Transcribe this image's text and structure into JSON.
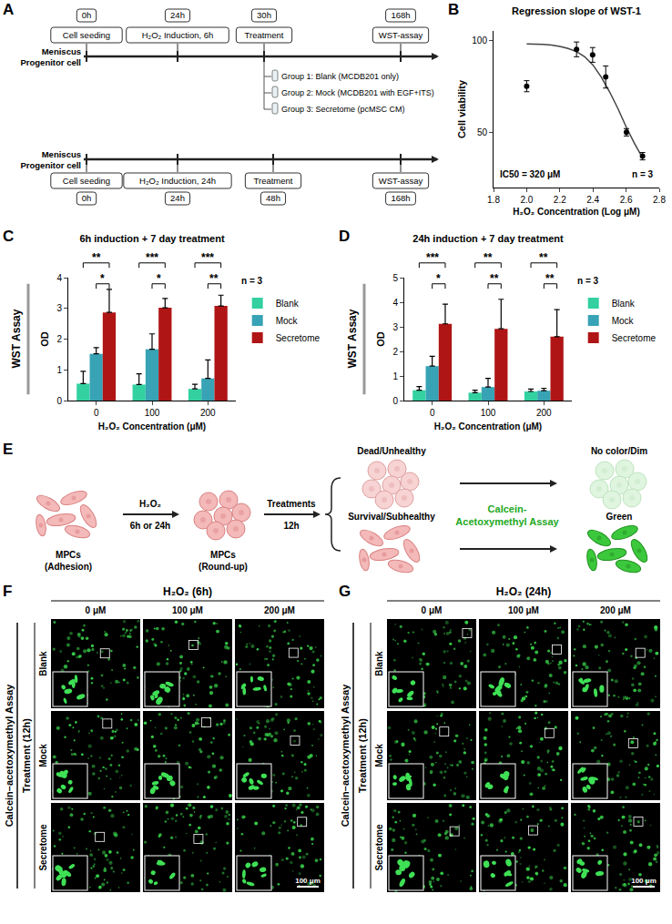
{
  "panel_letters": [
    "A",
    "B",
    "C",
    "D",
    "E",
    "F",
    "G"
  ],
  "timelines": {
    "cell_label": [
      "Meniscus",
      "Progenitor cell"
    ],
    "rows": [
      {
        "times": [
          "0h",
          "24h",
          "30h",
          "168h"
        ],
        "steps": [
          "Cell seeding",
          "H₂O₂ Induction, 6h",
          "Treatment",
          "WST-assay"
        ],
        "groups": [
          "Group 1: Blank (MCDB201 only)",
          "Group 2: Mock (MCDB201 with EGF+ITS)",
          "Group 3: Secretome (pcMSC CM)"
        ]
      },
      {
        "times": [
          "0h",
          "24h",
          "48h",
          "168h"
        ],
        "steps": [
          "Cell seeding",
          "H₂O₂ Induction, 24h",
          "Treatment",
          "WST-assay"
        ]
      }
    ]
  },
  "chart_data": [
    {
      "type": "scatter",
      "title": "Regression slope of WST-1",
      "x_label": "H₂O₂ Concentration (Log μM)",
      "y_label": "Cell viability",
      "annotations": [
        "IC50 = 320 μM",
        "n = 3"
      ],
      "xlim": [
        1.8,
        2.8
      ],
      "xticks": [
        1.8,
        {
          "value": 2,
          "label": "2.0"
        },
        2.2,
        2.4,
        2.6,
        2.8
      ],
      "ylim": [
        20,
        105
      ],
      "yticks": [
        50,
        100
      ],
      "grid": false,
      "series": [
        {
          "type": "line",
          "line_style": "solid",
          "color": "#444444",
          "x": [
            2.0,
            2.05,
            2.1,
            2.15,
            2.2,
            2.25,
            2.3,
            2.35,
            2.4,
            2.45,
            2.5,
            2.55,
            2.6,
            2.65,
            2.7
          ],
          "values": [
            98,
            97.9,
            97.7,
            97.3,
            96.6,
            95.5,
            93.8,
            91,
            86.5,
            80,
            72,
            63,
            53,
            44,
            36
          ]
        },
        {
          "type": "scatter",
          "marker": "circle",
          "color": "#000000",
          "x": [
            2.0,
            2.301,
            2.398,
            2.477,
            2.602,
            2.699
          ],
          "values": [
            75,
            95,
            92,
            80,
            50,
            37
          ],
          "errors": [
            3,
            4,
            4,
            6,
            2,
            2
          ]
        }
      ]
    },
    {
      "type": "bar",
      "title": "6h induction + 7 day treatment",
      "side_label": "WST Assay",
      "x_label": "H₂O₂ Concentration (μM)",
      "y_label": "OD",
      "annotations": [
        "n = 3"
      ],
      "categories": [
        "0",
        "100",
        "200"
      ],
      "ylim": [
        0,
        4
      ],
      "yticks": [
        0,
        1,
        2,
        3,
        4
      ],
      "grid": false,
      "legend": "right",
      "series": [
        {
          "name": "Blank",
          "color": "#33d1a0",
          "values": [
            0.55,
            0.52,
            0.38
          ],
          "errors": [
            0.4,
            0.35,
            0.15
          ]
        },
        {
          "name": "Mock",
          "color": "#38a3b5",
          "values": [
            1.52,
            1.67,
            0.72
          ],
          "errors": [
            0.2,
            0.5,
            0.6
          ]
        },
        {
          "name": "Secretome",
          "color": "#b01515",
          "values": [
            2.87,
            3.02,
            3.08
          ],
          "errors": [
            0.75,
            0.3,
            0.35
          ]
        }
      ],
      "significance": [
        {
          "category": "0",
          "from": "Mock",
          "to": "Secretome",
          "label": "*"
        },
        {
          "category": "0",
          "from": "Blank",
          "to": "Secretome",
          "label": "**"
        },
        {
          "category": "100",
          "from": "Mock",
          "to": "Secretome",
          "label": "*"
        },
        {
          "category": "100",
          "from": "Blank",
          "to": "Secretome",
          "label": "***"
        },
        {
          "category": "200",
          "from": "Mock",
          "to": "Secretome",
          "label": "**"
        },
        {
          "category": "200",
          "from": "Blank",
          "to": "Secretome",
          "label": "***"
        }
      ]
    },
    {
      "type": "bar",
      "title": "24h induction + 7 day treatment",
      "side_label": "WST Assay",
      "x_label": "H₂O₂ Concentration (μM)",
      "y_label": "OD",
      "annotations": [
        "n = 3"
      ],
      "categories": [
        "0",
        "100",
        "200"
      ],
      "ylim": [
        0,
        5
      ],
      "yticks": [
        0,
        1,
        2,
        3,
        4,
        5
      ],
      "grid": false,
      "legend": "right",
      "series": [
        {
          "name": "Blank",
          "color": "#33d1a0",
          "values": [
            0.42,
            0.32,
            0.37
          ],
          "errors": [
            0.15,
            0.1,
            0.1
          ]
        },
        {
          "name": "Mock",
          "color": "#38a3b5",
          "values": [
            1.4,
            0.55,
            0.4
          ],
          "errors": [
            0.4,
            0.35,
            0.1
          ]
        },
        {
          "name": "Secretome",
          "color": "#b01515",
          "values": [
            3.12,
            2.92,
            2.6
          ],
          "errors": [
            0.8,
            1.2,
            1.1
          ]
        }
      ],
      "significance": [
        {
          "category": "0",
          "from": "Mock",
          "to": "Secretome",
          "label": "*"
        },
        {
          "category": "0",
          "from": "Blank",
          "to": "Secretome",
          "label": "***"
        },
        {
          "category": "100",
          "from": "Mock",
          "to": "Secretome",
          "label": "**"
        },
        {
          "category": "100",
          "from": "Blank",
          "to": "Secretome",
          "label": "**"
        },
        {
          "category": "200",
          "from": "Mock",
          "to": "Secretome",
          "label": "**"
        },
        {
          "category": "200",
          "from": "Blank",
          "to": "Secretome",
          "label": "**"
        }
      ]
    }
  ],
  "schematic": {
    "start": [
      "MPCs",
      "(Adhesion)"
    ],
    "stimulus": "H₂O₂",
    "stimulus_time": "6h or 24h",
    "rounded": [
      "MPCs",
      "(Round-up)"
    ],
    "treatment": "Treatments",
    "treatment_time": "12h",
    "outcomes": [
      {
        "state": "Dead/Unhealthy",
        "result": "No color/Dim"
      },
      {
        "state": "Survival/Subhealthy",
        "result": "Green"
      }
    ],
    "assay": [
      "Calcein-",
      "Acetoxymethyl Assay"
    ]
  },
  "image_panels": [
    {
      "title": "H₂O₂ (6h)",
      "columns": [
        "0 μM",
        "100 μM",
        "200 μM"
      ],
      "rows": [
        "Blank",
        "Mock",
        "Secretome"
      ],
      "assay_label": "Calcein–acetoxymethyl Assay",
      "treatment_label": "Treatment (12h)",
      "scale_bar": "100 μm"
    },
    {
      "title": "H₂O₂ (24h)",
      "columns": [
        "0 μM",
        "100 μM",
        "200 μM"
      ],
      "rows": [
        "Blank",
        "Mock",
        "Secretome"
      ],
      "assay_label": "Calcein–acetoxymethyl Assay",
      "treatment_label": "Treatment (12h)",
      "scale_bar": "100 μm"
    }
  ]
}
